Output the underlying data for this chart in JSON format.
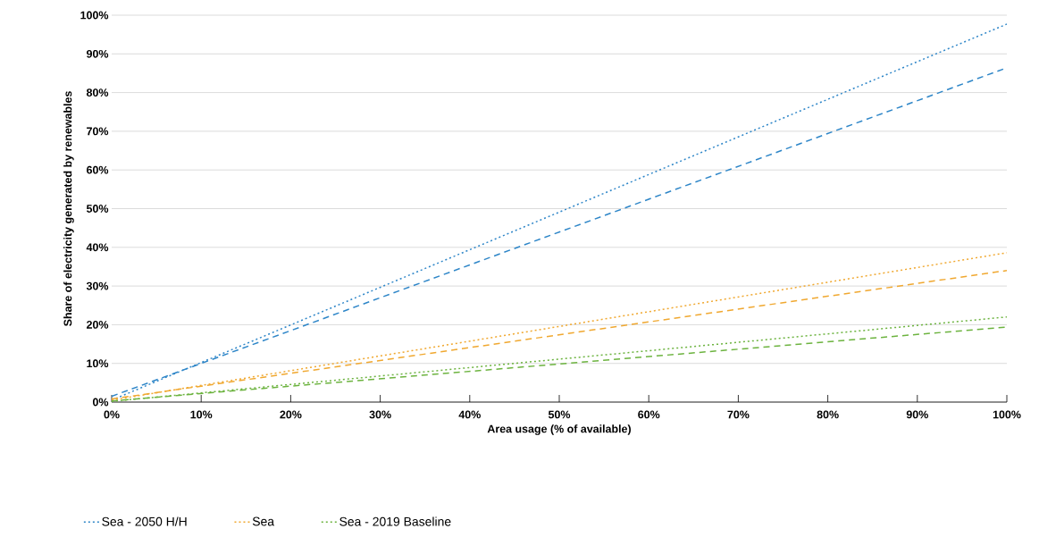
{
  "chart_data": {
    "type": "line",
    "xlabel": "Area usage (% of available)",
    "ylabel": "Share of electricity generated by renewables",
    "xlim": [
      0,
      100
    ],
    "ylim": [
      0,
      100
    ],
    "xticks": [
      {
        "value": 0,
        "label": "0%"
      },
      {
        "value": 10,
        "label": "10%"
      },
      {
        "value": 20,
        "label": "20%"
      },
      {
        "value": 30,
        "label": "30%"
      },
      {
        "value": 40,
        "label": "40%"
      },
      {
        "value": 50,
        "label": "50%"
      },
      {
        "value": 60,
        "label": "60%"
      },
      {
        "value": 70,
        "label": "70%"
      },
      {
        "value": 80,
        "label": "80%"
      },
      {
        "value": 90,
        "label": "90%"
      },
      {
        "value": 100,
        "label": "100%"
      }
    ],
    "yticks": [
      {
        "value": 0,
        "label": "0%"
      },
      {
        "value": 10,
        "label": "10%"
      },
      {
        "value": 20,
        "label": "20%"
      },
      {
        "value": 30,
        "label": "30%"
      },
      {
        "value": 40,
        "label": "40%"
      },
      {
        "value": 50,
        "label": "50%"
      },
      {
        "value": 60,
        "label": "60%"
      },
      {
        "value": 70,
        "label": "70%"
      },
      {
        "value": 80,
        "label": "80%"
      },
      {
        "value": 90,
        "label": "90%"
      },
      {
        "value": 100,
        "label": "100%"
      }
    ],
    "grid": "y",
    "legend": "bottom",
    "marker": "none",
    "x": [
      0,
      100
    ],
    "series": [
      {
        "name": "Sea - 2050 H/H",
        "color": "#2e86c8",
        "line_style": "dotted",
        "values": [
          0.5,
          97.7
        ]
      },
      {
        "name": "Sea",
        "color": "#f0a830",
        "line_style": "dotted",
        "values": [
          0.5,
          38.6
        ]
      },
      {
        "name": "Sea - 2019 Baseline",
        "color": "#6cb33f",
        "line_style": "dotted",
        "values": [
          0.2,
          22
        ]
      },
      {
        "color": "#2e86c8",
        "line_style": "dashed",
        "values": [
          1.5,
          86.4
        ]
      },
      {
        "color": "#f0a830",
        "line_style": "dashed",
        "values": [
          0.8,
          34
        ]
      },
      {
        "color": "#6cb33f",
        "line_style": "dashed",
        "values": [
          0.3,
          19.4
        ]
      }
    ]
  }
}
